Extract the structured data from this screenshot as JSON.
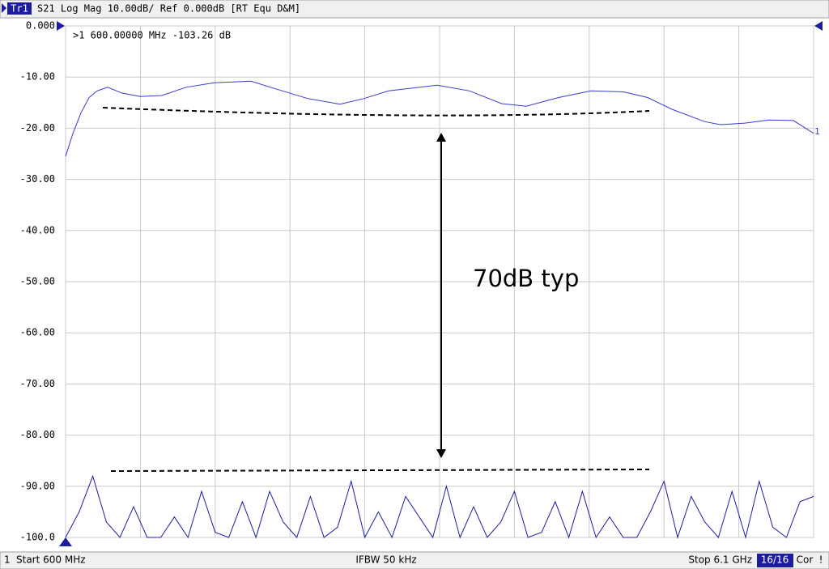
{
  "chart_data": {
    "type": "line",
    "header": {
      "trace": "Tr1",
      "settings": "S21 Log Mag 10.00dB/ Ref 0.000dB [RT Equ D&M]"
    },
    "marker_readout": ">1  600.00000 MHz -103.26 dB",
    "annotation": "70dB typ",
    "trace_label": "1",
    "status": {
      "channel": "1",
      "start": "Start 600 MHz",
      "ifbw": "IFBW 50 kHz",
      "stop": "Stop 6.1 GHz",
      "sweep": "16/16",
      "cor": "Cor",
      "warn": "!"
    },
    "xlim": [
      600,
      6100
    ],
    "xticks": [
      600,
      1150,
      1700,
      2250,
      2800,
      3350,
      3900,
      4450,
      5000,
      5550,
      6100
    ],
    "ylim": [
      -100,
      0
    ],
    "yticks": [
      {
        "value": 0,
        "label": "0.000"
      },
      {
        "value": -10,
        "label": "-10.00"
      },
      {
        "value": -20,
        "label": "-20.00"
      },
      {
        "value": -30,
        "label": "-30.00"
      },
      {
        "value": -40,
        "label": "-40.00"
      },
      {
        "value": -50,
        "label": "-50.00"
      },
      {
        "value": -60,
        "label": "-60.00"
      },
      {
        "value": -70,
        "label": "-70.00"
      },
      {
        "value": -80,
        "label": "-80.00"
      },
      {
        "value": -90,
        "label": "-90.00"
      },
      {
        "value": -100,
        "label": "-100.0"
      }
    ],
    "grid": true,
    "series": [
      {
        "color": "#3a3ad0",
        "x": [
          600,
          654,
          713,
          773,
          832,
          910,
          1011,
          1148,
          1308,
          1487,
          1695,
          1963,
          2142,
          2380,
          2618,
          2796,
          2975,
          3332,
          3570,
          3808,
          3987,
          4225,
          4463,
          4701,
          4880,
          5058,
          5297,
          5416,
          5594,
          5773,
          5951,
          6100
        ],
        "values": [
          -25.5,
          -21,
          -17,
          -14,
          -12.7,
          -12,
          -13.1,
          -13.8,
          -13.6,
          -12,
          -11.1,
          -10.8,
          -12.3,
          -14.2,
          -15.3,
          -14.2,
          -12.7,
          -11.6,
          -12.7,
          -15.2,
          -15.7,
          -14,
          -12.7,
          -12.9,
          -14,
          -16.3,
          -18.7,
          -19.3,
          -19,
          -18.4,
          -18.5,
          -21
        ]
      },
      {
        "color": "#1c1ca0",
        "x": [
          600,
          700,
          800,
          900,
          1000,
          1100,
          1200,
          1300,
          1400,
          1500,
          1600,
          1700,
          1800,
          1900,
          2000,
          2100,
          2200,
          2300,
          2400,
          2500,
          2600,
          2700,
          2800,
          2900,
          3000,
          3100,
          3200,
          3300,
          3400,
          3500,
          3600,
          3700,
          3800,
          3900,
          4000,
          4100,
          4200,
          4300,
          4400,
          4500,
          4600,
          4700,
          4800,
          4900,
          5000,
          5100,
          5200,
          5300,
          5400,
          5500,
          5600,
          5700,
          5800,
          5900,
          6000,
          6100
        ],
        "values": [
          -100,
          -95,
          -88,
          -97,
          -100,
          -94,
          -100,
          -100,
          -96,
          -100,
          -91,
          -99,
          -100,
          -93,
          -100,
          -91,
          -97,
          -100,
          -92,
          -100,
          -98,
          -89,
          -100,
          -95,
          -100,
          -92,
          -96,
          -100,
          -90,
          -100,
          -94,
          -100,
          -97,
          -91,
          -100,
          -99,
          -93,
          -100,
          -91,
          -100,
          -96,
          -100,
          -100,
          -95,
          -89,
          -100,
          -92,
          -97,
          -100,
          -91,
          -100,
          -89,
          -98,
          -100,
          -93,
          -92
        ]
      }
    ]
  }
}
